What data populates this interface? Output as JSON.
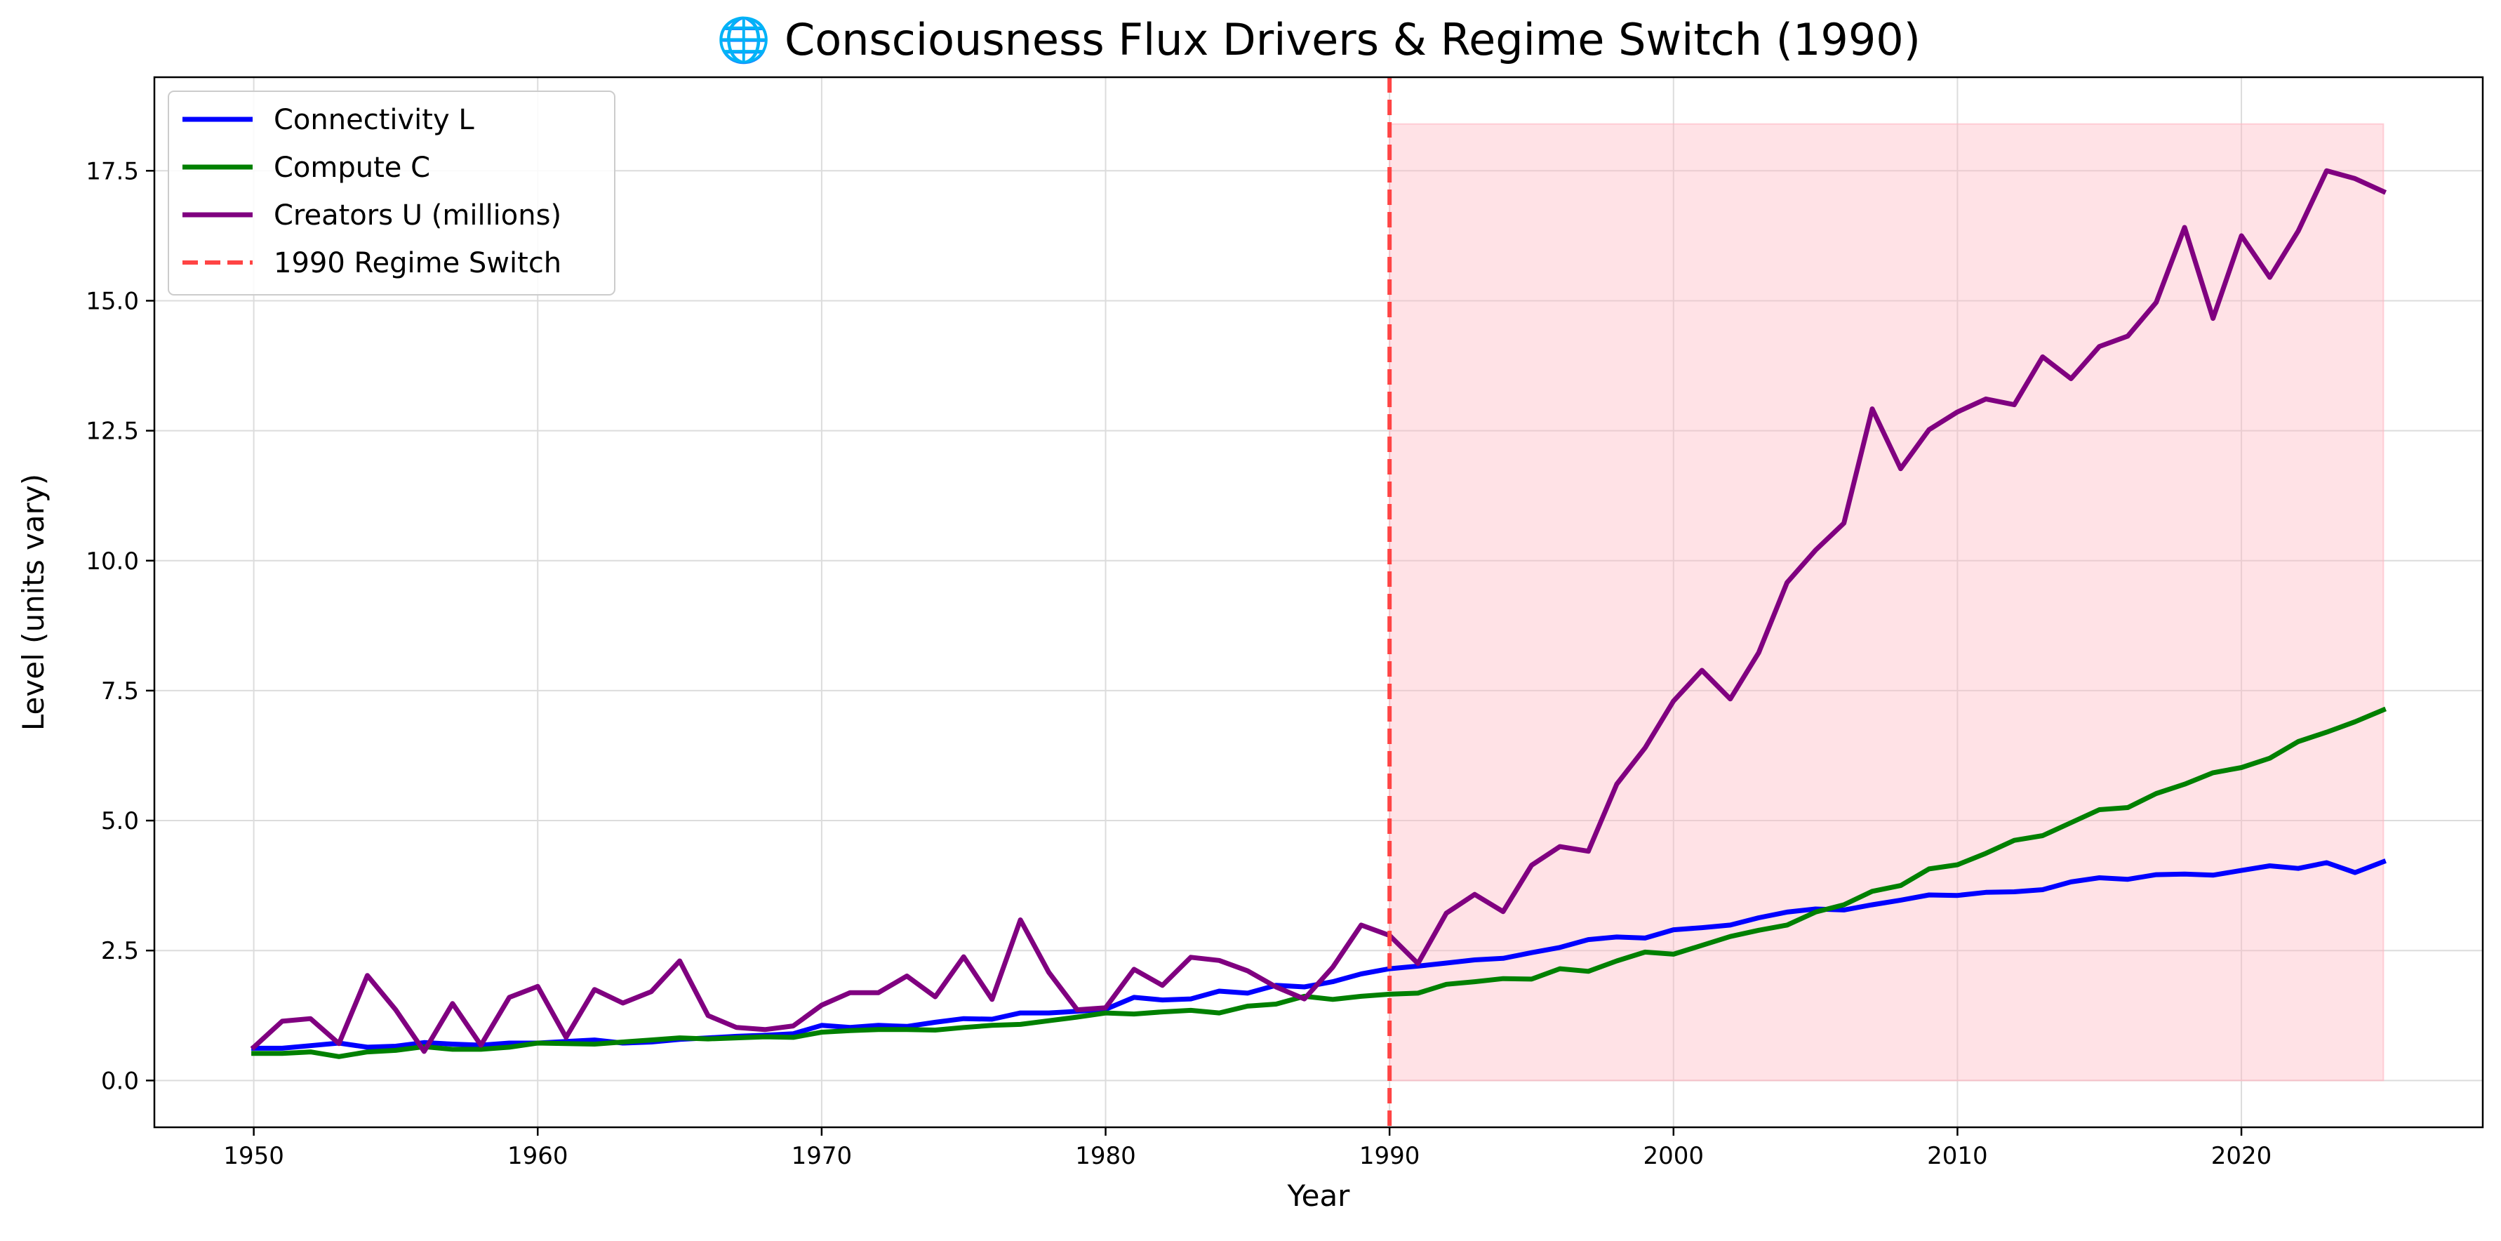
{
  "chart_data": {
    "type": "line",
    "title": "🌐 Consciousness Flux Drivers & Regime Switch (1990)",
    "xlabel": "Year",
    "ylabel": "Level (units vary)",
    "xlim": [
      1946.5,
      2028.5
    ],
    "ylim": [
      -0.9,
      19.3
    ],
    "x_ticks": [
      1950,
      1960,
      1970,
      1980,
      1990,
      2000,
      2010,
      2020
    ],
    "y_ticks": [
      0.0,
      2.5,
      5.0,
      7.5,
      10.0,
      12.5,
      15.0,
      17.5
    ],
    "y_tick_labels": [
      "0.0",
      "2.5",
      "5.0",
      "7.5",
      "10.0",
      "12.5",
      "15.0",
      "17.5"
    ],
    "grid": true,
    "legend_position": "top-left",
    "x": [
      1950,
      1951,
      1952,
      1953,
      1954,
      1955,
      1956,
      1957,
      1958,
      1959,
      1960,
      1961,
      1962,
      1963,
      1964,
      1965,
      1966,
      1967,
      1968,
      1969,
      1970,
      1971,
      1972,
      1973,
      1974,
      1975,
      1976,
      1977,
      1978,
      1979,
      1980,
      1981,
      1982,
      1983,
      1984,
      1985,
      1986,
      1987,
      1988,
      1989,
      1990,
      1991,
      1992,
      1993,
      1994,
      1995,
      1996,
      1997,
      1998,
      1999,
      2000,
      2001,
      2002,
      2003,
      2004,
      2005,
      2006,
      2007,
      2008,
      2009,
      2010,
      2011,
      2012,
      2013,
      2014,
      2015,
      2016,
      2017,
      2018,
      2019,
      2020,
      2021,
      2022,
      2023,
      2024,
      2025
    ],
    "series": [
      {
        "name": "Connectivity L",
        "color": "#0000ff",
        "values": [
          0.62,
          0.62,
          0.67,
          0.72,
          0.64,
          0.66,
          0.73,
          0.7,
          0.68,
          0.72,
          0.72,
          0.75,
          0.78,
          0.72,
          0.74,
          0.79,
          0.82,
          0.85,
          0.87,
          0.9,
          1.06,
          1.02,
          1.06,
          1.04,
          1.12,
          1.19,
          1.18,
          1.3,
          1.3,
          1.33,
          1.37,
          1.6,
          1.55,
          1.57,
          1.72,
          1.68,
          1.83,
          1.8,
          1.9,
          2.05,
          2.15,
          2.2,
          2.26,
          2.32,
          2.35,
          2.46,
          2.56,
          2.71,
          2.76,
          2.74,
          2.9,
          2.94,
          2.99,
          3.13,
          3.24,
          3.3,
          3.28,
          3.38,
          3.47,
          3.57,
          3.56,
          3.62,
          3.63,
          3.67,
          3.82,
          3.9,
          3.87,
          3.96,
          3.97,
          3.95,
          4.04,
          4.13,
          4.08,
          4.19,
          4.0,
          4.21
        ]
      },
      {
        "name": "Compute C",
        "color": "#008000",
        "values": [
          0.52,
          0.52,
          0.55,
          0.46,
          0.55,
          0.58,
          0.65,
          0.6,
          0.6,
          0.64,
          0.72,
          0.71,
          0.7,
          0.74,
          0.78,
          0.82,
          0.8,
          0.82,
          0.84,
          0.83,
          0.93,
          0.96,
          0.98,
          0.98,
          0.97,
          1.02,
          1.06,
          1.08,
          1.15,
          1.22,
          1.3,
          1.28,
          1.32,
          1.35,
          1.3,
          1.43,
          1.47,
          1.62,
          1.56,
          1.62,
          1.66,
          1.68,
          1.85,
          1.9,
          1.96,
          1.95,
          2.15,
          2.1,
          2.3,
          2.47,
          2.43,
          2.6,
          2.77,
          2.89,
          2.99,
          3.24,
          3.38,
          3.64,
          3.75,
          4.07,
          4.15,
          4.37,
          4.62,
          4.71,
          4.96,
          5.21,
          5.25,
          5.52,
          5.7,
          5.92,
          6.02,
          6.2,
          6.52,
          6.7,
          6.9,
          7.13
        ]
      },
      {
        "name": "Creators U (millions)",
        "color": "#800080",
        "values": [
          0.64,
          1.14,
          1.19,
          0.71,
          2.02,
          1.36,
          0.56,
          1.48,
          0.68,
          1.6,
          1.81,
          0.83,
          1.75,
          1.49,
          1.71,
          2.3,
          1.25,
          1.02,
          0.98,
          1.05,
          1.45,
          1.69,
          1.69,
          2.01,
          1.61,
          2.38,
          1.56,
          3.09,
          2.08,
          1.36,
          1.4,
          2.14,
          1.83,
          2.37,
          2.31,
          2.11,
          1.8,
          1.57,
          2.18,
          2.99,
          2.79,
          2.25,
          3.22,
          3.58,
          3.25,
          4.14,
          4.5,
          4.41,
          5.7,
          6.4,
          7.3,
          7.89,
          7.34,
          8.23,
          9.58,
          10.2,
          10.72,
          12.92,
          11.77,
          12.52,
          12.86,
          13.11,
          13.0,
          13.92,
          13.5,
          14.12,
          14.32,
          14.97,
          16.41,
          14.66,
          16.25,
          15.45,
          16.34,
          17.5,
          17.35,
          17.1
        ]
      }
    ],
    "regime_switch": {
      "name": "1990 Regime Switch",
      "x": 1990,
      "color": "#ff4444"
    },
    "shaded_region": {
      "x_start": 1990,
      "x_end": 2025,
      "y_start": 0,
      "y_end": 18.4,
      "color": "#ffb6c1"
    }
  }
}
